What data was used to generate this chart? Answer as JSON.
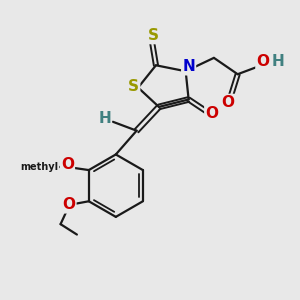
{
  "background_color": "#e8e8e8",
  "bond_color": "#1a1a1a",
  "atom_colors": {
    "S": "#999900",
    "N": "#0000cc",
    "O": "#cc0000",
    "H": "#408080",
    "C": "#1a1a1a"
  },
  "fig_w": 3.0,
  "fig_h": 3.0,
  "dpi": 100
}
